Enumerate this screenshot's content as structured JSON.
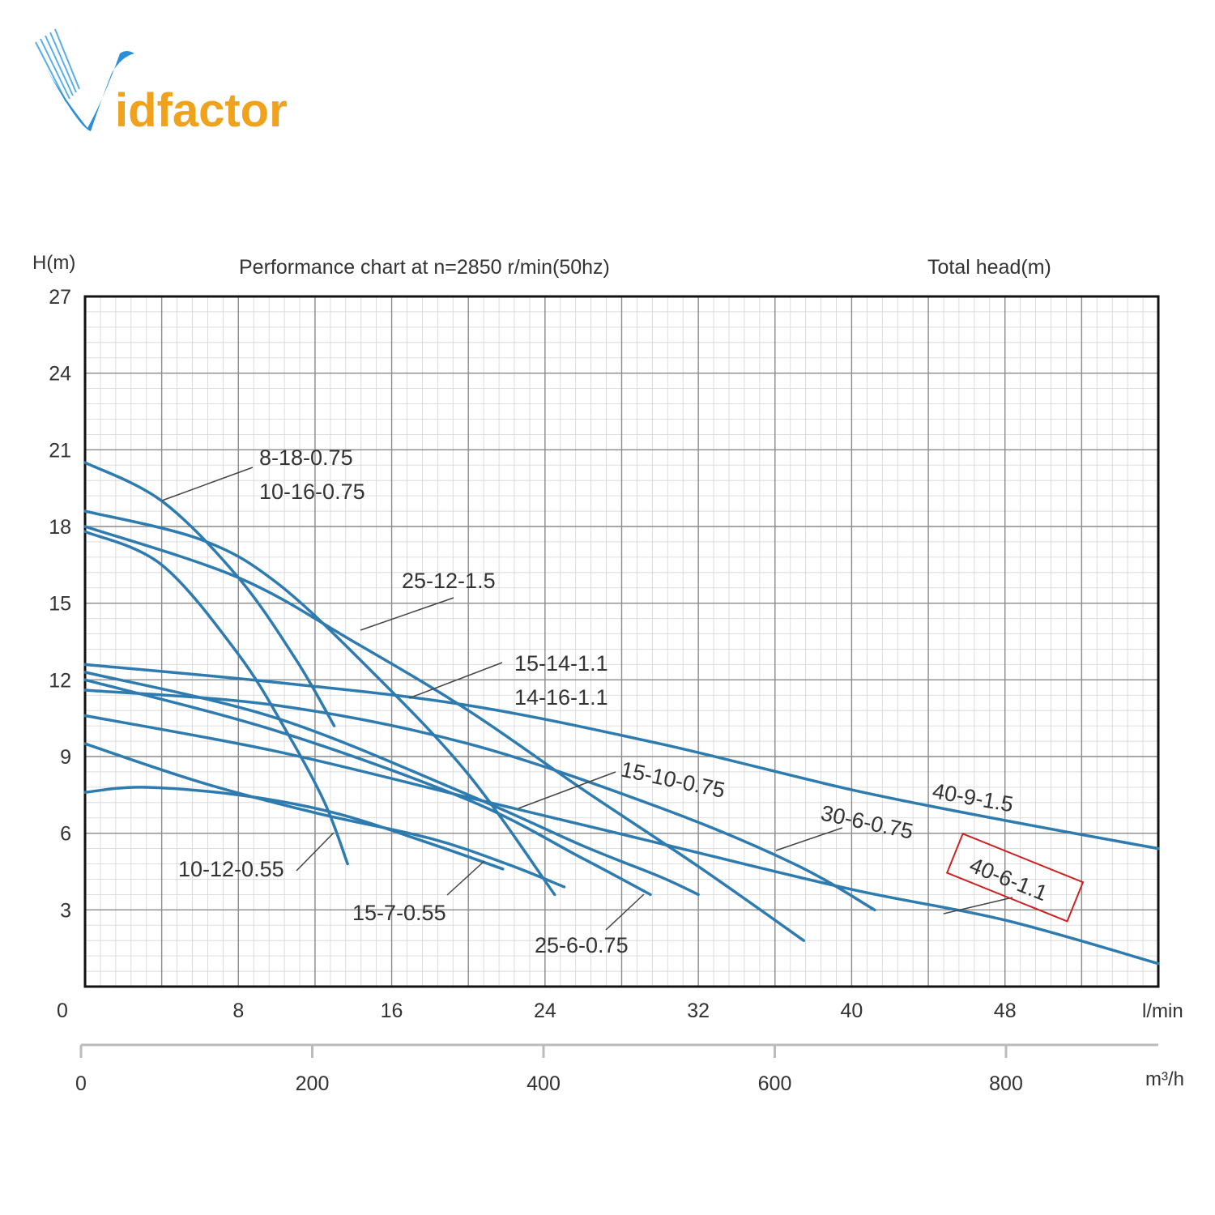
{
  "brand": {
    "name": "Vidfactor",
    "colors": {
      "blue": "#2a8fd8",
      "orange": "#f0a21c"
    }
  },
  "chart_data": {
    "type": "line",
    "title": "Performance chart at n=2850 r/min(50hz)",
    "ylabel": "H(m)",
    "ylabel_right": "Total head(m)",
    "xlabel": "l/min",
    "x2label": "m³/h",
    "xlim": [
      0,
      56
    ],
    "ylim": [
      0,
      27
    ],
    "x_ticks": [
      0,
      8,
      16,
      24,
      32,
      40,
      48
    ],
    "y_ticks": [
      3,
      6,
      9,
      12,
      15,
      18,
      21,
      24,
      27
    ],
    "x2_ticks": [
      "0",
      "200",
      "400",
      "600",
      "800"
    ],
    "grid": true,
    "series_color": "#2e7bb0",
    "highlight_color": "#cc2222",
    "series": [
      {
        "name": "8-18-0.75",
        "x": [
          0,
          4,
          8,
          11,
          13
        ],
        "y": [
          20.5,
          19,
          16,
          12.8,
          10.2
        ]
      },
      {
        "name": "10-16-0.75",
        "x": [
          0,
          4,
          8,
          10.5,
          12.5,
          13.7
        ],
        "y": [
          17.8,
          16.5,
          13,
          10,
          7.2,
          4.8
        ]
      },
      {
        "name": "25-12-1.5",
        "x": [
          0,
          6,
          10,
          15,
          20,
          24.5
        ],
        "y": [
          18.6,
          17.5,
          15.8,
          12.3,
          8.3,
          3.6
        ]
      },
      {
        "name": "15-14-1.1",
        "x": [
          0,
          8,
          14,
          20,
          26,
          32,
          37.5
        ],
        "y": [
          18.0,
          16.0,
          13.5,
          10.8,
          7.7,
          4.7,
          1.8
        ]
      },
      {
        "name": "14-16-1.1",
        "x": [
          0,
          10,
          20,
          26,
          30,
          32
        ],
        "y": [
          12.3,
          10.5,
          7.5,
          5.5,
          4.3,
          3.6
        ]
      },
      {
        "name": "15-10-0.75",
        "x": [
          0,
          10,
          20,
          26,
          29.5
        ],
        "y": [
          12.0,
          10.0,
          7.3,
          5.0,
          3.6
        ]
      },
      {
        "name": "40-9-1.5",
        "x": [
          0,
          10,
          20,
          30,
          40,
          48,
          56
        ],
        "y": [
          12.6,
          11.9,
          11.0,
          9.5,
          7.7,
          6.5,
          5.4
        ]
      },
      {
        "name": "30-6-0.75",
        "x": [
          0,
          10,
          20,
          30,
          37,
          41.2
        ],
        "y": [
          11.6,
          11.0,
          9.5,
          7.0,
          4.8,
          3.0
        ]
      },
      {
        "name": "40-6-1.1",
        "x": [
          0,
          10,
          20,
          30,
          40,
          48,
          56
        ],
        "y": [
          10.6,
          9.2,
          7.4,
          5.6,
          3.8,
          2.6,
          0.9
        ]
      },
      {
        "name": "25-6-0.75",
        "x": [
          0,
          6,
          12,
          18,
          22,
          25
        ],
        "y": [
          9.5,
          8.0,
          6.8,
          5.8,
          4.8,
          3.9
        ]
      },
      {
        "name": "15-7-0.55",
        "x": [
          0,
          3,
          8,
          13,
          18,
          21.8
        ],
        "y": [
          7.6,
          7.8,
          7.5,
          6.8,
          5.6,
          4.6
        ]
      }
    ],
    "annotations": [
      {
        "id": "ann-8-18",
        "lines": [
          "8-18-0.75",
          "10-16-0.75"
        ],
        "rotate": 0,
        "boxed": false
      },
      {
        "id": "ann-25-12",
        "lines": [
          "25-12-1.5"
        ],
        "rotate": 0,
        "boxed": false
      },
      {
        "id": "ann-15-14",
        "lines": [
          "15-14-1.1",
          "14-16-1.1"
        ],
        "rotate": 0,
        "boxed": false
      },
      {
        "id": "ann-15-10",
        "lines": [
          "15-10-0.75"
        ],
        "rotate": 12,
        "boxed": false
      },
      {
        "id": "ann-40-9",
        "lines": [
          "40-9-1.5"
        ],
        "rotate": 10,
        "boxed": false
      },
      {
        "id": "ann-30-6",
        "lines": [
          "30-6-0.75"
        ],
        "rotate": 12,
        "boxed": false
      },
      {
        "id": "ann-40-6",
        "lines": [
          "40-6-1.1"
        ],
        "rotate": 22,
        "boxed": true
      },
      {
        "id": "ann-10-12",
        "lines": [
          "10-12-0.55"
        ],
        "rotate": 0,
        "boxed": false
      },
      {
        "id": "ann-15-7",
        "lines": [
          "15-7-0.55"
        ],
        "rotate": 0,
        "boxed": false
      },
      {
        "id": "ann-25-6",
        "lines": [
          "25-6-0.75"
        ],
        "rotate": 0,
        "boxed": false
      }
    ]
  }
}
